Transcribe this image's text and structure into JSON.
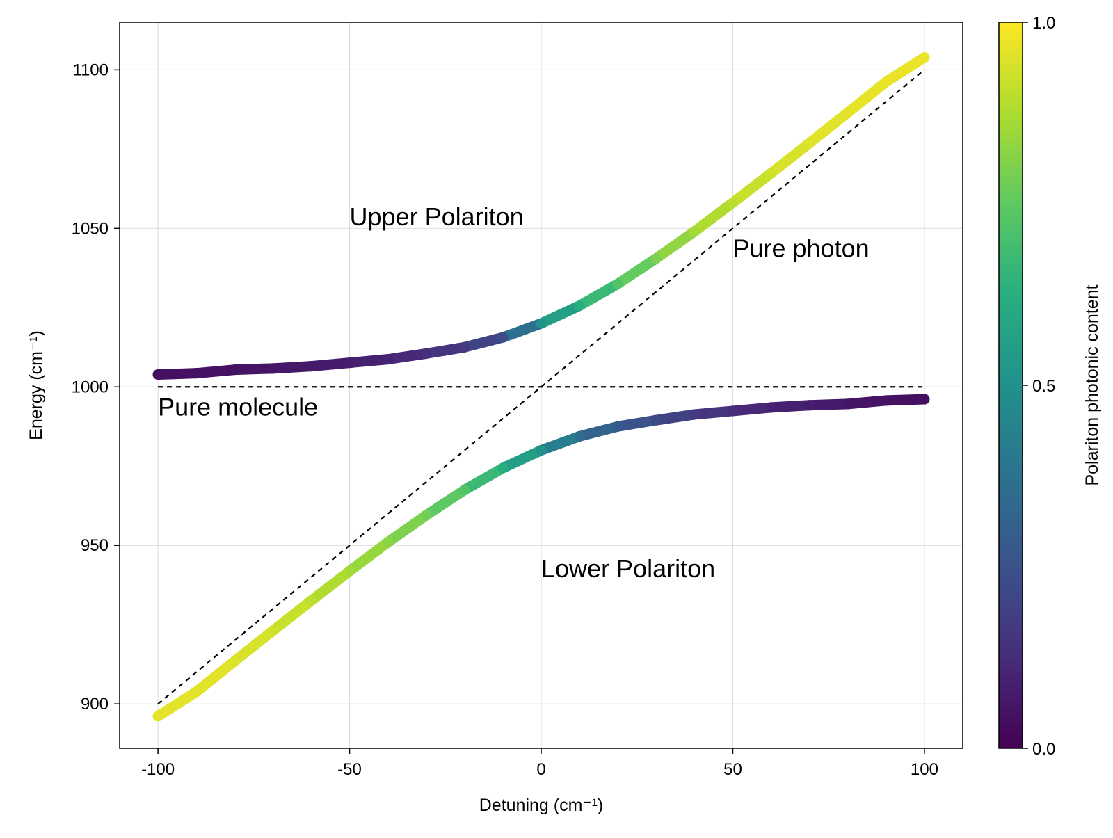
{
  "chart_data": {
    "type": "scatter",
    "xlabel": "Detuning (cm⁻¹)",
    "ylabel": "Energy (cm⁻¹)",
    "xlim": [
      -110,
      110
    ],
    "ylim": [
      886,
      1115
    ],
    "xticks": [
      {
        "value": -100,
        "label": "-100"
      },
      {
        "value": -50,
        "label": "-50"
      },
      {
        "value": 0,
        "label": "0"
      },
      {
        "value": 50,
        "label": "50"
      },
      {
        "value": 100,
        "label": "100"
      }
    ],
    "yticks": [
      {
        "value": 900,
        "label": "900"
      },
      {
        "value": 950,
        "label": "950"
      },
      {
        "value": 1000,
        "label": "1000"
      },
      {
        "value": 1050,
        "label": "1050"
      },
      {
        "value": 1100,
        "label": "1100"
      }
    ],
    "grid": true,
    "colormap": "viridis",
    "colorbar": {
      "label": "Polariton photonic content",
      "range": [
        0,
        1
      ],
      "ticks": [
        {
          "value": 0,
          "label": "0.0"
        },
        {
          "value": 0.5,
          "label": "0.5"
        },
        {
          "value": 1,
          "label": "1.0"
        }
      ]
    },
    "reference_lines": [
      {
        "name": "Pure molecule",
        "x": [
          -100,
          100
        ],
        "y": [
          1000,
          1000
        ],
        "style": "dashed",
        "color": "#000000"
      },
      {
        "name": "Pure photon",
        "x": [
          -100,
          100
        ],
        "y": [
          900,
          1100
        ],
        "style": "dashed",
        "color": "#000000"
      }
    ],
    "series": [
      {
        "name": "Upper Polariton",
        "x": [
          -100,
          -90,
          -80,
          -70,
          -60,
          -50,
          -40,
          -30,
          -20,
          -10,
          0,
          10,
          20,
          30,
          40,
          50,
          60,
          70,
          80,
          90,
          100
        ],
        "y": [
          1003.9,
          1004.3,
          1005.4,
          1005.8,
          1006.5,
          1007.6,
          1008.7,
          1010.5,
          1012.5,
          1015.6,
          1020,
          1025.6,
          1032.5,
          1040.5,
          1049,
          1058.1,
          1067.4,
          1076.9,
          1086.5,
          1096.2,
          1103.9
        ],
        "color_value": [
          0.04,
          0.045,
          0.05,
          0.06,
          0.07,
          0.08,
          0.1,
          0.13,
          0.17,
          0.23,
          0.5,
          0.62,
          0.72,
          0.8,
          0.86,
          0.9,
          0.93,
          0.95,
          0.96,
          0.97,
          0.97
        ]
      },
      {
        "name": "Lower Polariton",
        "x": [
          -100,
          -90,
          -80,
          -70,
          -60,
          -50,
          -40,
          -30,
          -20,
          -10,
          0,
          10,
          20,
          30,
          40,
          50,
          60,
          70,
          80,
          90,
          100
        ],
        "y": [
          896.1,
          903.8,
          913.5,
          923.1,
          932.6,
          941.9,
          951,
          959.5,
          967.5,
          974.4,
          980,
          984.4,
          987.5,
          989.5,
          991.3,
          992.4,
          993.5,
          994.2,
          994.6,
          995.7,
          996.1
        ],
        "color_value": [
          0.96,
          0.96,
          0.95,
          0.93,
          0.9,
          0.86,
          0.82,
          0.78,
          0.72,
          0.62,
          0.5,
          0.35,
          0.28,
          0.22,
          0.17,
          0.13,
          0.1,
          0.08,
          0.06,
          0.05,
          0.04
        ]
      }
    ],
    "annotations": [
      {
        "text": "Upper Polariton",
        "x": -50,
        "y": 1051
      },
      {
        "text": "Pure photon",
        "x": 50,
        "y": 1041
      },
      {
        "text": "Pure molecule",
        "x": -100,
        "y": 991
      },
      {
        "text": "Lower Polariton",
        "x": 0,
        "y": 940
      }
    ]
  }
}
